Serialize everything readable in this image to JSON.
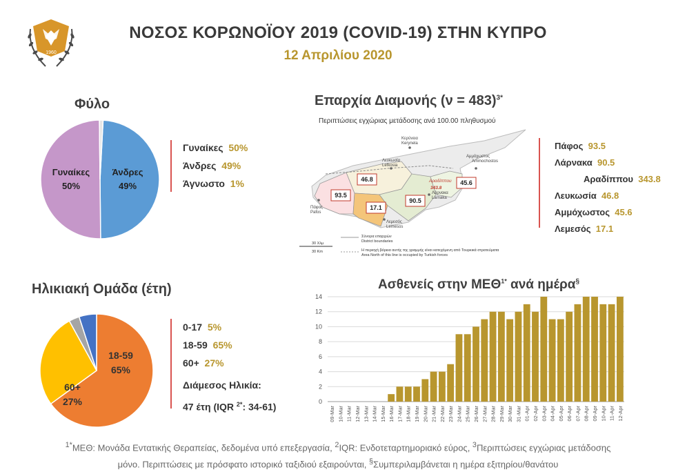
{
  "header": {
    "title": "ΝΟΣΟΣ ΚΟΡΩΝΟΪΟΥ 2019 (COVID-19) ΣΤΗΝ ΚΥΠΡΟ",
    "date": "12 Απριλίου 2020",
    "emblem_year": "1960"
  },
  "sex": {
    "title": "Φύλο",
    "legend": [
      {
        "label": "Γυναίκες",
        "value": "50%"
      },
      {
        "label": "Άνδρες",
        "value": "49%"
      },
      {
        "label": "Άγνωστο",
        "value": "1%"
      }
    ],
    "slice_labels": {
      "women": "Γυναίκες",
      "women_pct": "50%",
      "men": "Άνδρες",
      "men_pct": "49%"
    }
  },
  "district": {
    "title": "Επαρχία Διαμονής (ν = 483)",
    "title_sup": "3*",
    "subtitle": "Περιπτώσεις εγχώριας μετάδοσης ανά 100.00 πληθυσμού",
    "legend": [
      {
        "label": "Πάφος",
        "value": "93.5"
      },
      {
        "label": "Λάρνακα",
        "value": "90.5"
      },
      {
        "label": "Αραδίππου",
        "value": "343.8"
      },
      {
        "label": "Λευκωσία",
        "value": "46.8"
      },
      {
        "label": "Αμμόχωστος",
        "value": "45.6"
      },
      {
        "label": "Λεμεσός",
        "value": "17.1"
      }
    ],
    "map": {
      "boxes": [
        "93.5",
        "46.8",
        "17.1",
        "90.5",
        "45.6"
      ],
      "aradippou_label": "Αραδίππου",
      "aradippou_value": "343.8",
      "towns": {
        "kyrenia": "Κερύνεια",
        "kyrenia_en": "Kerynela",
        "lefkosia": "Λευκωσία",
        "lefkosia_en": "Lefkosia",
        "ammochostos": "Αμμόχωστος",
        "ammochostos_en": "Ammochostos",
        "larnaka": "Λάρνακα",
        "larnaka_en": "Larnaka",
        "pafos": "Πάφος",
        "pafos_en": "Pafos",
        "lemesos": "Λεμεσός",
        "lemesos_en": "Lemesos"
      },
      "scale_top": "30 Χλμ",
      "scale_bottom": "30 Km",
      "key_boundaries_gr": "Σύνορα επαρχιών",
      "key_boundaries_en": "District boundaries",
      "key_line_gr": "Η περιοχή βόρεια αυτής της γραμμής είναι κατεχόμενη από Τουρκικά στρατεύματα",
      "key_line_en": "Area North of this line is occupied by Turkish forces"
    }
  },
  "age": {
    "title": "Ηλικιακή Ομάδα (έτη)",
    "legend": [
      {
        "label": "0-17",
        "value": "5%"
      },
      {
        "label": "18-59",
        "value": "65%"
      },
      {
        "label": "60+",
        "value": "27%"
      }
    ],
    "slice_labels": {
      "a1859": "18-59",
      "a1859_pct": "65%",
      "a60": "60+",
      "a60_pct": "27%"
    },
    "median_label": "Διάμεσος Ηλικία:",
    "median_value": "47 έτη (IQR ",
    "median_sup": "2*",
    "median_tail": ": 34-61)"
  },
  "icu": {
    "title": "Ασθενείς στην ΜΕΘ",
    "title_sup1": "1*",
    "title_tail": "ανά ημέρα",
    "title_sup2": "§"
  },
  "chart_data": [
    {
      "type": "pie",
      "title": "Φύλο",
      "categories": [
        "Γυναίκες",
        "Άνδρες",
        "Άγνωστο"
      ],
      "values": [
        50,
        49,
        1
      ],
      "colors": [
        "#c597c9",
        "#5b9bd5",
        "#e7e6e6"
      ]
    },
    {
      "type": "pie",
      "title": "Ηλικιακή Ομάδα (έτη)",
      "categories": [
        "0-17",
        "18-59",
        "60+"
      ],
      "values": [
        5,
        65,
        27
      ],
      "colors": [
        "#4472c4",
        "#ed7d31",
        "#ffc000",
        "#a5a5a5"
      ]
    },
    {
      "type": "bar",
      "title": "Ασθενείς στην ΜΕΘ ανά ημέρα",
      "categories": [
        "09-Mar",
        "10-Mar",
        "11-Mar",
        "12-Mar",
        "13-Mar",
        "14-Mar",
        "15-Mar",
        "16-Mar",
        "17-Mar",
        "18-Mar",
        "19-Mar",
        "20-Mar",
        "21-Mar",
        "22-Mar",
        "23-Mar",
        "24-Mar",
        "25-Mar",
        "26-Mar",
        "27-Mar",
        "28-Mar",
        "29-Mar",
        "30-Mar",
        "31-Mar",
        "01-Apr",
        "02-Apr",
        "03-Apr",
        "04-Apr",
        "05-Apr",
        "06-Apr",
        "07-Apr",
        "08-Apr",
        "09-Apr",
        "10-Apr",
        "11-Apr",
        "12-Apr"
      ],
      "values": [
        0,
        0,
        0,
        0,
        0,
        0,
        0,
        1,
        2,
        2,
        2,
        3,
        4,
        4,
        5,
        9,
        9,
        10,
        11,
        12,
        12,
        11,
        12,
        13,
        12,
        14,
        11,
        11,
        12,
        13,
        14,
        14,
        13,
        13,
        14
      ],
      "ylim": [
        0,
        14
      ],
      "yticks": [
        "0",
        "2",
        "4",
        "6",
        "8",
        "10",
        "12",
        "14"
      ],
      "grid": true,
      "color": "#b8962e"
    }
  ],
  "footnote": {
    "line1": "1*ΜΕΘ: Μονάδα Εντατικής Θεραπείας, δεδομένα υπό επεξεργασία, 2IQR: Ενδοτεταρτημοριακό εύρος, 3Περιπτώσεις εγχώριας μετάδοσης",
    "line2": "μόνο. Περιπτώσεις με πρόσφατο ιστορικό ταξιδιού εξαιρούνται, §Συμπεριλαμβάνεται η ημέρα εξιτηρίου/θανάτου"
  }
}
